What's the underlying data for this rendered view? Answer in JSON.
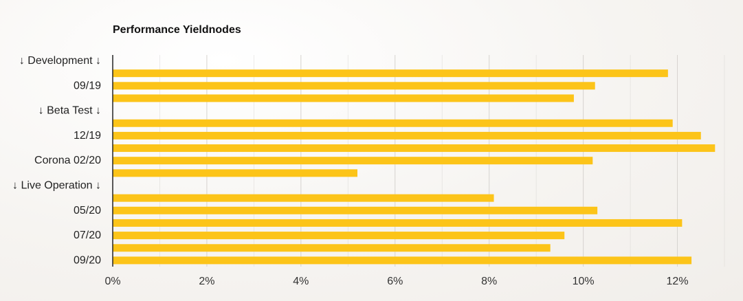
{
  "chart_data": {
    "type": "bar",
    "orientation": "horizontal",
    "title": "Performance Yieldnodes",
    "xlabel": "",
    "ylabel": "",
    "xlim": [
      0,
      13
    ],
    "x_ticks": [
      "0%",
      "2%",
      "4%",
      "6%",
      "8%",
      "10%",
      "12%"
    ],
    "x_tick_values": [
      0,
      2,
      4,
      6,
      8,
      10,
      12
    ],
    "grid": true,
    "bar_color": "#fcc419",
    "axis_color": "#222222",
    "grid_color": "#d6d3cf",
    "categories": [
      "↓ Development ↓",
      "",
      "09/19",
      "",
      "↓ Beta Test ↓",
      "",
      "12/19",
      "",
      "Corona 02/20",
      "",
      "↓ Live Operation ↓",
      "",
      "05/20",
      "",
      "07/20",
      "",
      "09/20"
    ],
    "values": [
      null,
      11.8,
      10.25,
      9.8,
      null,
      11.9,
      12.5,
      12.8,
      10.2,
      5.2,
      null,
      8.1,
      10.3,
      12.1,
      9.6,
      9.3,
      12.3
    ]
  }
}
